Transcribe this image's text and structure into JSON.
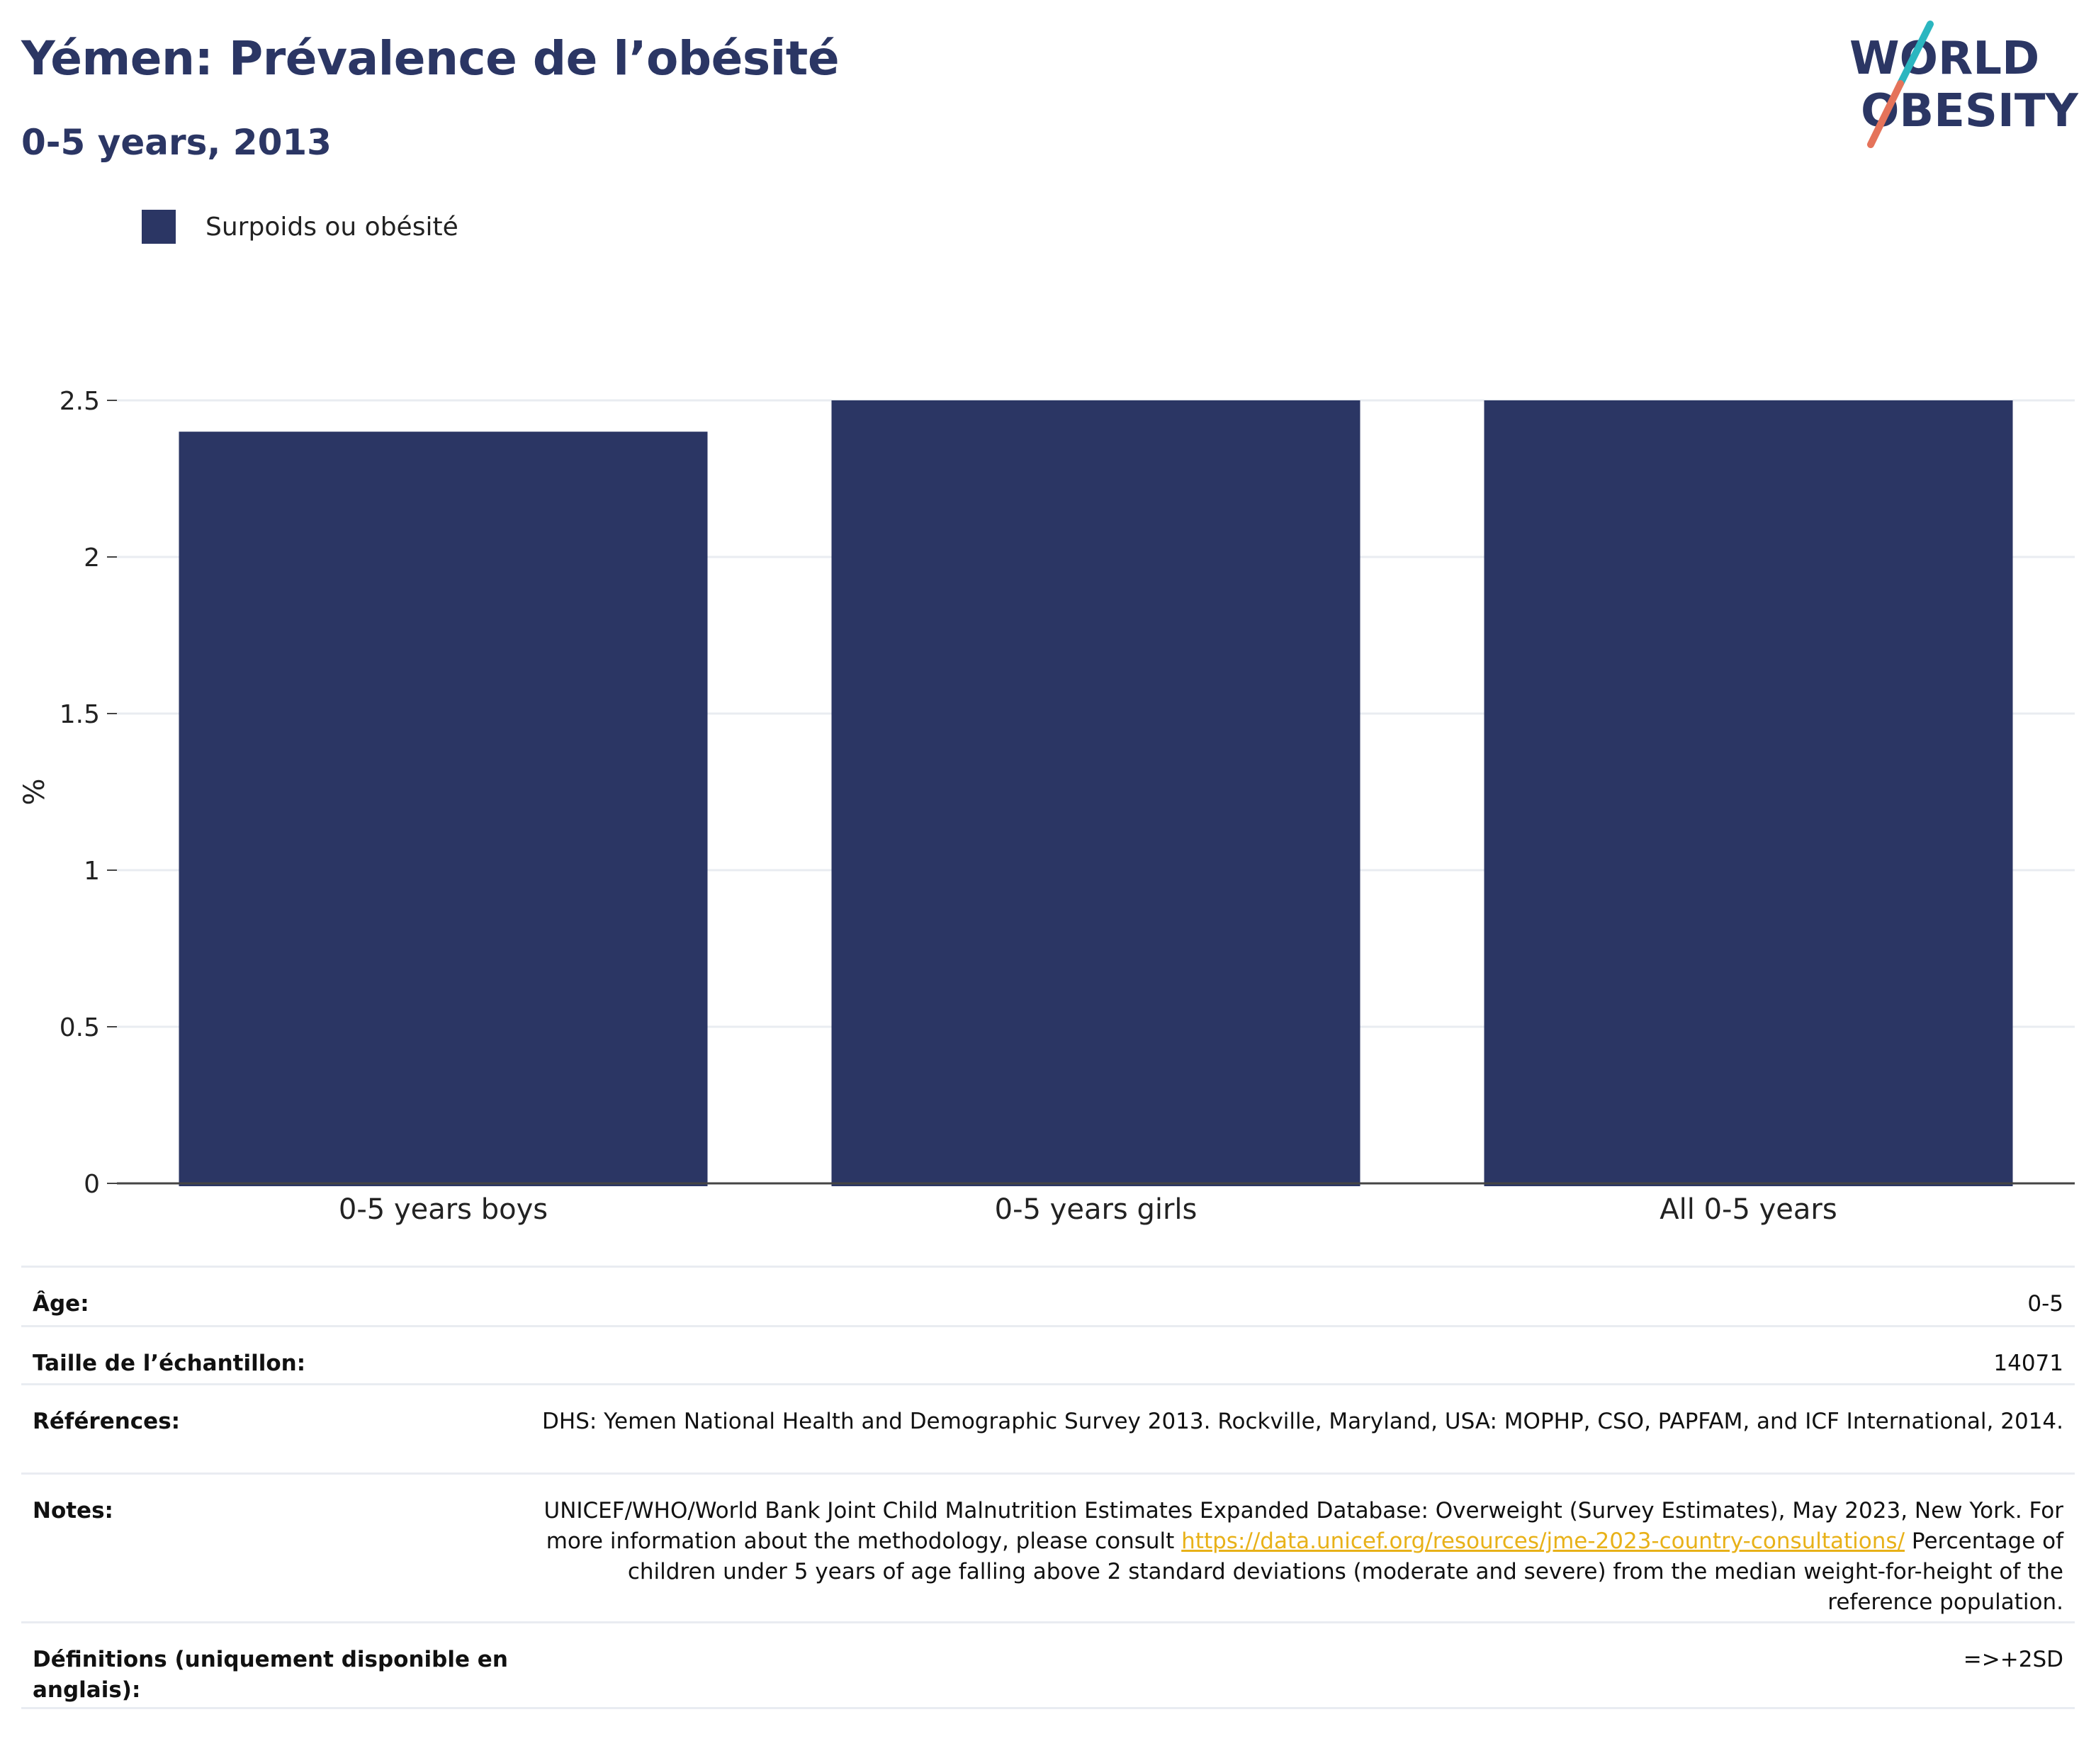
{
  "header": {
    "title": "Yémen: Prévalence de l’obésité",
    "subtitle": "0-5 years, 2013"
  },
  "logo": {
    "line1": "WORLD",
    "line2": "OBESITY",
    "icon": "world-obesity-logo"
  },
  "colors": {
    "bar": "#2b3664",
    "accent_teal": "#2bb6c0",
    "accent_coral": "#e5735a",
    "link": "#e8b118"
  },
  "chart_data": {
    "type": "bar",
    "categories": [
      "0-5 years boys",
      "0-5 years girls",
      "All 0-5 years"
    ],
    "series": [
      {
        "name": "Surpoids ou obésité",
        "values": [
          2.4,
          2.5,
          2.5
        ]
      }
    ],
    "ylabel": "%",
    "ylim": [
      0,
      2.5
    ],
    "yticks": [
      0,
      0.5,
      1,
      1.5,
      2,
      2.5
    ],
    "ytick_labels": [
      "0",
      "0.5",
      "1",
      "1.5",
      "2",
      "2.5"
    ],
    "grid": true,
    "legend_position": "top-left"
  },
  "meta": {
    "rows": [
      {
        "label": "Âge:",
        "value": "0-5"
      },
      {
        "label": "Taille de l’échantillon:",
        "value": "14071"
      },
      {
        "label": "Références:",
        "value": "DHS: Yemen National Health and Demographic Survey 2013. Rockville, Maryland, USA: MOPHP, CSO, PAPFAM, and ICF International, 2014."
      },
      {
        "label": "Notes:",
        "value_before_link": "UNICEF/WHO/World Bank Joint Child Malnutrition Estimates Expanded Database: Overweight (Survey Estimates), May 2023, New York. For more information about the methodology, please consult ",
        "link": "https://data.unicef.org/resources/jme-2023-country-consultations/",
        "value_after_link": " Percentage of children under 5 years of age falling above 2 standard deviations (moderate and severe) from the median weight-for-height of the reference population."
      },
      {
        "label": "Définitions (uniquement disponible en anglais):",
        "value": "=>+2SD"
      }
    ]
  }
}
